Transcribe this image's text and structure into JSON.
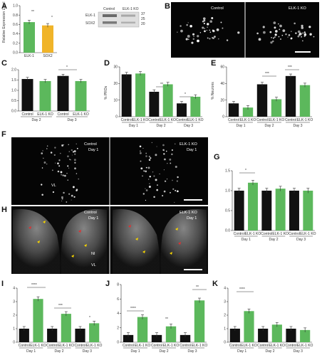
{
  "panels": {
    "A": {
      "label": "A",
      "ylabel": "Relative Expression Level",
      "blot_labels": [
        "ELK-1",
        "SOX2"
      ],
      "blot_header": [
        "Control",
        "ELK-1 KO"
      ],
      "markers": [
        "37",
        "25",
        "20"
      ],
      "stars": [
        "**",
        "*"
      ]
    },
    "B": {
      "label": "B",
      "captions": [
        "Control",
        "ELK-1 KO"
      ]
    },
    "C": {
      "label": "C",
      "stars": [
        "*"
      ]
    },
    "D": {
      "label": "D",
      "ylabel": "% PROs",
      "stars": [
        "**",
        "*"
      ]
    },
    "E": {
      "label": "E",
      "ylabel": "% Neurons",
      "stars": [
        "***",
        "***"
      ]
    },
    "F": {
      "label": "F",
      "captions": [
        "Control",
        "Day 1",
        "ELK-1 KO",
        "Day 1"
      ],
      "region": [
        "VL"
      ]
    },
    "G": {
      "label": "G",
      "stars": [
        "*"
      ]
    },
    "H": {
      "label": "H",
      "captions": [
        "Control",
        "Day 1",
        "ELK-1 KO",
        "Day 1"
      ],
      "regions": [
        "NI",
        "VL"
      ]
    },
    "I": {
      "label": "I",
      "stars": [
        "****",
        "***",
        "*"
      ]
    },
    "J": {
      "label": "J",
      "stars": [
        "****",
        "**",
        "**"
      ]
    },
    "K": {
      "label": "K",
      "stars": [
        "****"
      ]
    }
  },
  "colors": {
    "control": "#111111",
    "elk1_ko": "#5cb85c",
    "sox2": "#f0b429",
    "micrograph_bg": "#050505",
    "marker": "#f5d300",
    "arrow": "#e03030"
  },
  "chart_data": [
    {
      "id": "A",
      "type": "bar",
      "categories": [
        "ELK-1",
        "SOX2"
      ],
      "series": [
        {
          "values": [
            0.65,
            0.58
          ]
        }
      ],
      "ylim": [
        0,
        1.0
      ],
      "yticks": [
        "1.0",
        "0.8",
        "0.6",
        "0.4",
        "0.2",
        "0.0"
      ],
      "ylabel": "Relative Expression Level"
    },
    {
      "id": "C",
      "type": "bar",
      "categories": [
        "Control",
        "ELK-1 KO",
        "Control",
        "ELK-1 KO"
      ],
      "groups": [
        "Day 2",
        "Day 3"
      ],
      "series": [
        {
          "values": [
            1.55,
            1.45,
            1.7,
            1.45
          ]
        }
      ],
      "ylim": [
        0,
        2.0
      ],
      "yticks": [
        "2.0",
        "1.5",
        "1.0",
        "0.5",
        "0.0"
      ]
    },
    {
      "id": "D",
      "type": "bar",
      "categories": [
        "Control",
        "ELK-1 KO",
        "Control",
        "ELK-1 KO",
        "Control",
        "ELK-1 KO"
      ],
      "groups": [
        "Day 1",
        "Day 2",
        "Day 3"
      ],
      "series": [
        {
          "values": [
            25.5,
            26,
            15,
            19.5,
            8,
            12
          ]
        }
      ],
      "ylim": [
        0,
        30
      ],
      "yticks": [
        "30",
        "20",
        "10",
        "0"
      ],
      "ylabel": "% PROs"
    },
    {
      "id": "E",
      "type": "bar",
      "categories": [
        "Control",
        "ELK-1 KO",
        "Control",
        "ELK-1 KO",
        "Control",
        "ELK-1 KO"
      ],
      "groups": [
        "Day 1",
        "Day 2",
        "Day 3"
      ],
      "series": [
        {
          "values": [
            16,
            11,
            39,
            21,
            49,
            38
          ]
        }
      ],
      "ylim": [
        0,
        60
      ],
      "yticks": [
        "60",
        "40",
        "20",
        "0"
      ],
      "ylabel": "% Neurons"
    },
    {
      "id": "G",
      "type": "bar",
      "categories": [
        "Control",
        "ELK-1 KO",
        "Control",
        "ELK-1 KO",
        "Control",
        "ELK-1 KO"
      ],
      "groups": [
        "Day 1",
        "Day 2",
        "Day 3"
      ],
      "series": [
        {
          "values": [
            1.0,
            1.2,
            1.0,
            1.05,
            1.0,
            1.0
          ]
        }
      ],
      "ylim": [
        0,
        1.5
      ],
      "yticks": [
        "1.5",
        "1.0",
        "0.5",
        "0.0"
      ]
    },
    {
      "id": "I",
      "type": "bar",
      "categories": [
        "Control",
        "ELK-1 KO",
        "Control",
        "ELK-1 KO",
        "Control",
        "ELK-1 KO"
      ],
      "groups": [
        "Day 1",
        "Day 2",
        "Day 3"
      ],
      "series": [
        {
          "values": [
            1.0,
            3.2,
            1.0,
            2.1,
            1.0,
            1.4
          ]
        }
      ],
      "ylim": [
        0,
        4
      ],
      "yticks": [
        "4",
        "3",
        "2",
        "1",
        "0"
      ]
    },
    {
      "id": "J",
      "type": "bar",
      "categories": [
        "Control",
        "ELK-1 KO",
        "Control",
        "ELK-1 KO",
        "Control",
        "ELK-1 KO"
      ],
      "groups": [
        "Day 1",
        "Day 2",
        "Day 3"
      ],
      "series": [
        {
          "values": [
            1.0,
            3.5,
            1.0,
            2.2,
            1.0,
            5.8
          ]
        }
      ],
      "ylim": [
        0,
        8
      ],
      "yticks": [
        "8",
        "6",
        "4",
        "2",
        "0"
      ]
    },
    {
      "id": "K",
      "type": "bar",
      "categories": [
        "Control",
        "ELK-1 KO",
        "Control",
        "ELK-1 KO",
        "Control",
        "ELK-1 KO"
      ],
      "groups": [
        "Day 1",
        "Day 2",
        "Day 3"
      ],
      "series": [
        {
          "values": [
            1.0,
            2.3,
            1.0,
            1.3,
            1.0,
            0.9
          ]
        }
      ],
      "ylim": [
        0,
        4
      ],
      "yticks": [
        "4",
        "3",
        "2",
        "1",
        "0"
      ]
    }
  ]
}
